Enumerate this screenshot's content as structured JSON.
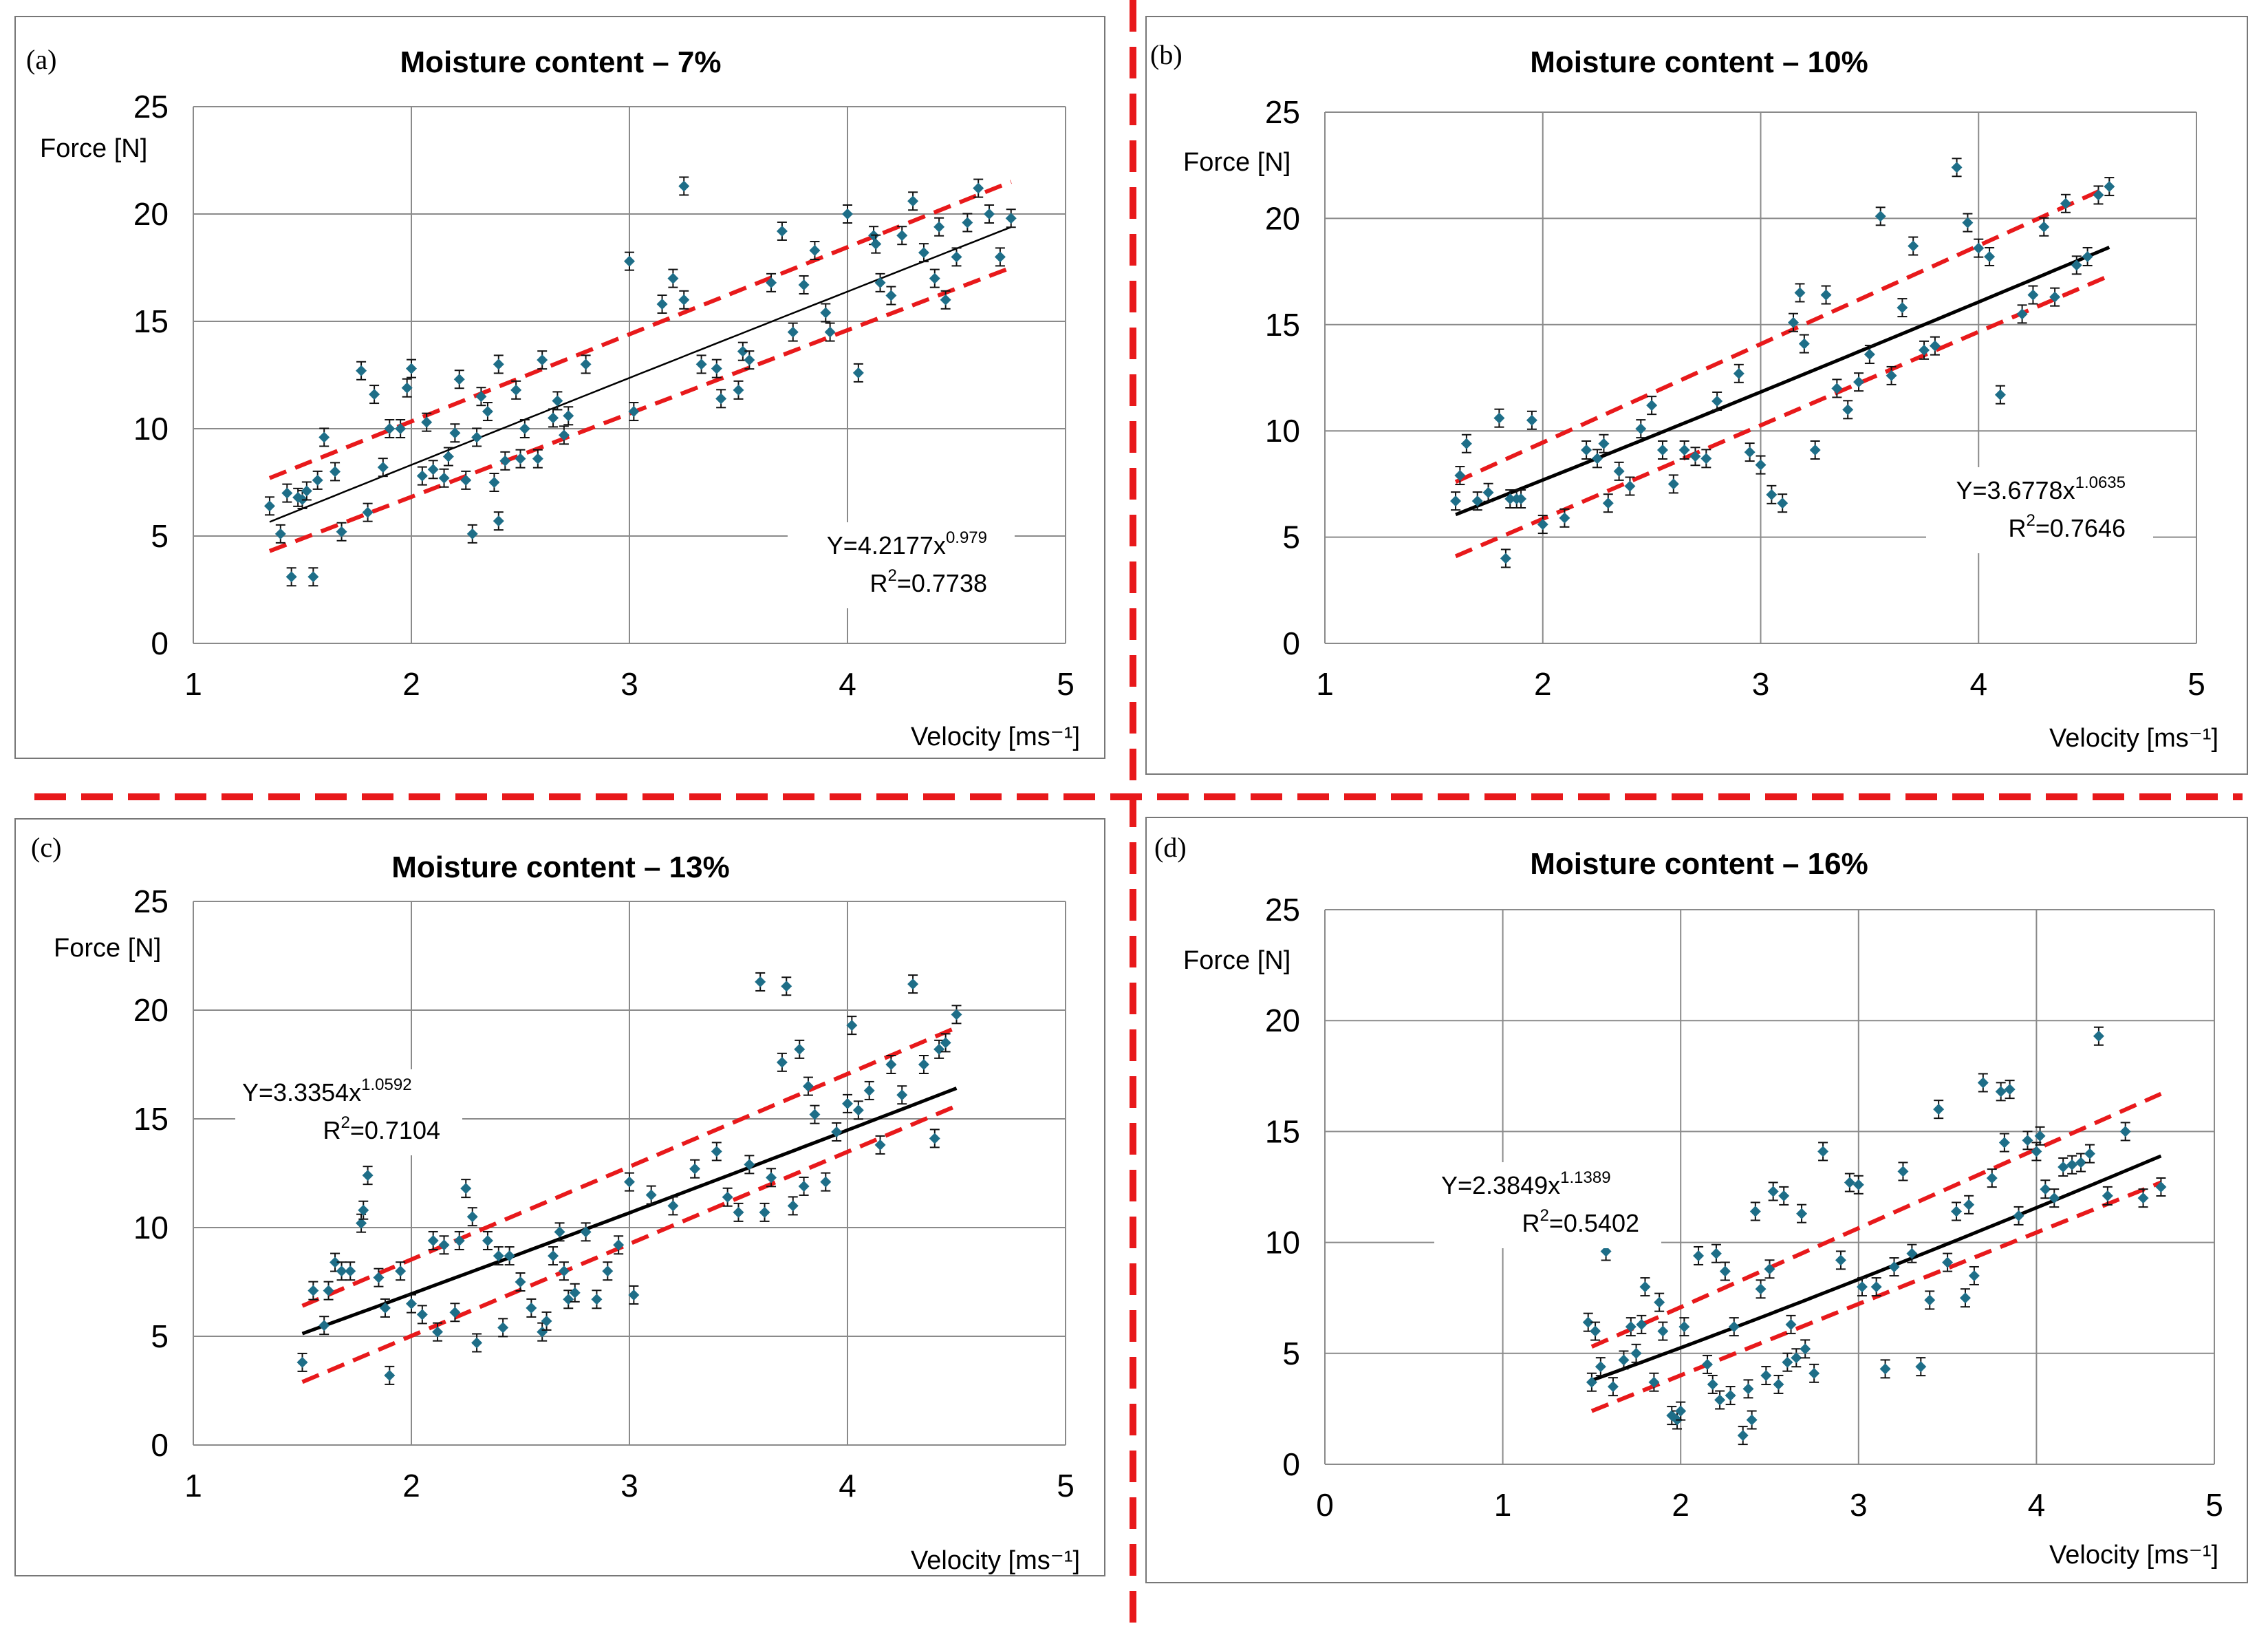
{
  "figure": {
    "accent_color": "#e8191b",
    "marker_color": "#1e6e88",
    "trend_color": "#000000"
  },
  "chart_data": [
    {
      "type": "scatter",
      "panel_label": "(a)",
      "title": "Moisture content – 7%",
      "xlabel": "Velocity [ms⁻¹]",
      "ylabel": "Force [N]",
      "xlim": [
        1,
        5
      ],
      "ylim": [
        0,
        25
      ],
      "xticks": [
        "1",
        "2",
        "3",
        "4",
        "5"
      ],
      "yticks": [
        "0",
        "5",
        "10",
        "15",
        "20",
        "25"
      ],
      "grid": true,
      "equation": {
        "prefix": "Y=4.2177x",
        "exponent": "0.979",
        "r2_prefix": "R",
        "r2_sup": "2",
        "r2_suffix": "=0.7738"
      },
      "fit": {
        "a": 4.2177,
        "b": 0.979,
        "x_range": [
          1.35,
          4.75
        ],
        "style": "thin"
      },
      "bands": {
        "upper": [
          [
            1.35,
            7.7
          ],
          [
            4.75,
            21.5
          ]
        ],
        "lower": [
          [
            1.35,
            4.3
          ],
          [
            4.75,
            17.5
          ]
        ]
      },
      "x": [
        1.35,
        1.4,
        1.43,
        1.45,
        1.48,
        1.5,
        1.52,
        1.55,
        1.57,
        1.6,
        1.65,
        1.68,
        1.77,
        1.8,
        1.83,
        1.87,
        1.9,
        1.95,
        1.98,
        2.0,
        2.05,
        2.07,
        2.1,
        2.15,
        2.17,
        2.2,
        2.22,
        2.25,
        2.28,
        2.3,
        2.32,
        2.35,
        2.38,
        2.4,
        2.4,
        2.43,
        2.48,
        2.5,
        2.52,
        2.58,
        2.6,
        2.65,
        2.67,
        2.7,
        2.72,
        2.8,
        3.0,
        3.02,
        3.15,
        3.2,
        3.25,
        3.25,
        3.33,
        3.4,
        3.42,
        3.5,
        3.52,
        3.55,
        3.65,
        3.7,
        3.75,
        3.8,
        3.85,
        3.9,
        3.92,
        4.0,
        4.05,
        4.12,
        4.13,
        4.15,
        4.2,
        4.25,
        4.3,
        4.35,
        4.4,
        4.42,
        4.45,
        4.5,
        4.55,
        4.6,
        4.65,
        4.7,
        4.75
      ],
      "y": [
        6.4,
        5.1,
        7.0,
        3.1,
        6.8,
        6.7,
        7.1,
        3.1,
        7.6,
        9.6,
        8.0,
        5.2,
        12.7,
        6.1,
        11.6,
        8.2,
        10.0,
        10.0,
        11.9,
        12.8,
        7.8,
        10.3,
        8.1,
        7.7,
        8.7,
        9.8,
        12.3,
        7.6,
        5.1,
        9.6,
        11.5,
        10.8,
        7.5,
        13.0,
        5.7,
        8.5,
        11.8,
        8.6,
        10.0,
        8.6,
        13.2,
        10.5,
        11.3,
        9.7,
        10.6,
        13.0,
        17.8,
        10.8,
        15.8,
        17.0,
        16.0,
        21.3,
        13.0,
        12.8,
        11.4,
        11.8,
        13.6,
        13.2,
        16.8,
        19.2,
        14.5,
        16.7,
        18.3,
        15.4,
        14.5,
        20.0,
        12.6,
        19.0,
        18.6,
        16.8,
        16.2,
        19.0,
        20.6,
        18.2,
        17.0,
        19.4,
        16.0,
        18.0,
        19.6,
        21.2,
        20.0,
        18.0,
        19.8
      ]
    },
    {
      "type": "scatter",
      "panel_label": "(b)",
      "title": "Moisture content – 10%",
      "xlabel": "Velocity [ms⁻¹]",
      "ylabel": "Force [N]",
      "xlim": [
        1,
        5
      ],
      "ylim": [
        0,
        25
      ],
      "xticks": [
        "1",
        "2",
        "3",
        "4",
        "5"
      ],
      "yticks": [
        "0",
        "5",
        "10",
        "15",
        "20",
        "25"
      ],
      "grid": true,
      "equation": {
        "prefix": "Y=3.6778x",
        "exponent": "1.0635",
        "r2_prefix": "R",
        "r2_sup": "2",
        "r2_suffix": "=0.7646"
      },
      "fit": {
        "a": 3.6778,
        "b": 1.0635,
        "x_range": [
          1.6,
          4.6
        ],
        "style": "bold"
      },
      "bands": {
        "upper": [
          [
            1.6,
            7.6
          ],
          [
            4.6,
            21.5
          ]
        ],
        "lower": [
          [
            1.6,
            4.1
          ],
          [
            4.6,
            17.3
          ]
        ]
      },
      "x": [
        1.6,
        1.62,
        1.65,
        1.7,
        1.75,
        1.8,
        1.83,
        1.85,
        1.88,
        1.9,
        1.95,
        2.0,
        2.1,
        2.2,
        2.25,
        2.28,
        2.3,
        2.35,
        2.4,
        2.45,
        2.5,
        2.55,
        2.6,
        2.65,
        2.7,
        2.75,
        2.8,
        2.9,
        2.95,
        3.0,
        3.05,
        3.1,
        3.15,
        3.18,
        3.2,
        3.25,
        3.3,
        3.35,
        3.4,
        3.45,
        3.5,
        3.55,
        3.6,
        3.65,
        3.7,
        3.75,
        3.8,
        3.9,
        3.95,
        4.0,
        4.05,
        4.1,
        4.2,
        4.25,
        4.3,
        4.35,
        4.4,
        4.45,
        4.5,
        4.55,
        4.6
      ],
      "y": [
        6.7,
        7.9,
        9.4,
        6.7,
        7.1,
        10.6,
        4.0,
        6.8,
        6.8,
        6.8,
        10.5,
        5.6,
        5.9,
        9.1,
        8.7,
        9.4,
        6.6,
        8.1,
        7.4,
        10.1,
        11.2,
        9.1,
        7.5,
        9.1,
        8.8,
        8.7,
        11.4,
        12.7,
        9.0,
        8.4,
        7.0,
        6.6,
        15.1,
        16.5,
        14.1,
        9.1,
        16.4,
        12.0,
        11.0,
        12.3,
        13.6,
        20.1,
        12.6,
        15.8,
        18.7,
        13.8,
        14.0,
        22.4,
        19.8,
        18.6,
        18.2,
        11.7,
        15.5,
        16.4,
        19.6,
        16.3,
        20.7,
        17.8,
        18.2,
        21.1,
        21.5
      ]
    },
    {
      "type": "scatter",
      "panel_label": "(c)",
      "title": "Moisture content – 13%",
      "xlabel": "Velocity [ms⁻¹]",
      "ylabel": "Force [N]",
      "xlim": [
        1,
        5
      ],
      "ylim": [
        0,
        25
      ],
      "xticks": [
        "1",
        "2",
        "3",
        "4",
        "5"
      ],
      "yticks": [
        "0",
        "5",
        "10",
        "15",
        "20",
        "25"
      ],
      "grid": true,
      "equation": {
        "prefix": "Y=3.3354x",
        "exponent": "1.0592",
        "r2_prefix": "R",
        "r2_sup": "2",
        "r2_suffix": "=0.7104"
      },
      "fit": {
        "a": 3.3354,
        "b": 1.0592,
        "x_range": [
          1.5,
          4.5
        ],
        "style": "bold"
      },
      "bands": {
        "upper": [
          [
            1.5,
            6.4
          ],
          [
            4.5,
            19.2
          ]
        ],
        "lower": [
          [
            1.5,
            2.9
          ],
          [
            4.5,
            15.6
          ]
        ]
      },
      "x": [
        1.5,
        1.55,
        1.6,
        1.62,
        1.65,
        1.68,
        1.72,
        1.77,
        1.78,
        1.8,
        1.85,
        1.88,
        1.9,
        1.95,
        2.0,
        2.05,
        2.1,
        2.12,
        2.15,
        2.2,
        2.22,
        2.25,
        2.28,
        2.3,
        2.35,
        2.4,
        2.42,
        2.45,
        2.5,
        2.55,
        2.6,
        2.62,
        2.65,
        2.68,
        2.7,
        2.72,
        2.75,
        2.8,
        2.85,
        2.9,
        2.95,
        3.0,
        3.02,
        3.1,
        3.2,
        3.3,
        3.4,
        3.45,
        3.5,
        3.55,
        3.6,
        3.62,
        3.65,
        3.7,
        3.72,
        3.75,
        3.78,
        3.8,
        3.82,
        3.85,
        3.9,
        3.95,
        4.0,
        4.02,
        4.05,
        4.1,
        4.15,
        4.2,
        4.25,
        4.3,
        4.35,
        4.4,
        4.42,
        4.45,
        4.5
      ],
      "y": [
        3.8,
        7.1,
        5.5,
        7.1,
        8.4,
        8.0,
        8.0,
        10.2,
        10.8,
        12.4,
        7.7,
        6.3,
        3.2,
        8.0,
        6.5,
        6.0,
        9.4,
        5.2,
        9.2,
        6.1,
        9.4,
        11.8,
        10.5,
        4.7,
        9.4,
        8.7,
        5.4,
        8.7,
        7.5,
        6.3,
        5.2,
        5.7,
        8.7,
        9.8,
        8.0,
        6.7,
        7.0,
        9.8,
        6.7,
        8.0,
        9.2,
        12.1,
        6.9,
        11.5,
        11.0,
        12.7,
        13.5,
        11.4,
        10.7,
        12.9,
        21.3,
        10.7,
        12.3,
        17.6,
        21.1,
        11.0,
        18.2,
        11.9,
        16.5,
        15.2,
        12.1,
        14.4,
        15.7,
        19.3,
        15.4,
        16.3,
        13.8,
        17.5,
        16.1,
        21.2,
        17.5,
        14.1,
        18.2,
        18.5,
        19.8
      ]
    },
    {
      "type": "scatter",
      "panel_label": "(d)",
      "title": "Moisture content – 16%",
      "xlabel": "Velocity [ms⁻¹]",
      "ylabel": "Force [N]",
      "xlim": [
        0,
        5
      ],
      "ylim": [
        0,
        25
      ],
      "xticks": [
        "0",
        "1",
        "2",
        "3",
        "4",
        "5"
      ],
      "yticks": [
        "0",
        "5",
        "10",
        "15",
        "20",
        "25"
      ],
      "grid": true,
      "equation": {
        "prefix": "Y=2.3849x",
        "exponent": "1.1389",
        "r2_prefix": "R",
        "r2_sup": "2",
        "r2_suffix": "=0.5402"
      },
      "fit": {
        "a": 2.3849,
        "b": 1.1389,
        "x_range": [
          1.5,
          4.7
        ],
        "style": "bold"
      },
      "bands": {
        "upper": [
          [
            1.5,
            5.3
          ],
          [
            4.7,
            16.7
          ]
        ],
        "lower": [
          [
            1.5,
            2.4
          ],
          [
            4.7,
            12.7
          ]
        ]
      },
      "x": [
        1.48,
        1.5,
        1.52,
        1.55,
        1.58,
        1.62,
        1.68,
        1.72,
        1.75,
        1.78,
        1.8,
        1.85,
        1.88,
        1.9,
        1.95,
        1.98,
        2.0,
        2.02,
        2.1,
        2.15,
        2.18,
        2.2,
        2.22,
        2.25,
        2.28,
        2.3,
        2.35,
        2.38,
        2.4,
        2.42,
        2.45,
        2.48,
        2.5,
        2.52,
        2.55,
        2.58,
        2.6,
        2.62,
        2.65,
        2.68,
        2.7,
        2.75,
        2.8,
        2.9,
        2.95,
        3.0,
        3.02,
        3.1,
        3.15,
        3.2,
        3.25,
        3.3,
        3.35,
        3.4,
        3.45,
        3.5,
        3.55,
        3.6,
        3.62,
        3.65,
        3.7,
        3.75,
        3.8,
        3.82,
        3.85,
        3.9,
        3.95,
        4.0,
        4.02,
        4.05,
        4.1,
        4.15,
        4.2,
        4.25,
        4.3,
        4.35,
        4.4,
        4.5,
        4.6,
        4.7
      ],
      "y": [
        6.4,
        3.7,
        6.0,
        4.4,
        9.6,
        3.5,
        4.7,
        6.2,
        5.0,
        6.3,
        8.0,
        3.7,
        7.3,
        6.0,
        2.2,
        2.0,
        2.4,
        6.2,
        9.4,
        4.5,
        3.6,
        9.5,
        2.9,
        8.7,
        3.1,
        6.2,
        1.3,
        3.4,
        2.0,
        11.4,
        7.9,
        4.0,
        8.8,
        12.3,
        3.6,
        12.1,
        4.6,
        6.3,
        4.8,
        11.3,
        5.2,
        4.1,
        14.1,
        9.2,
        12.7,
        12.6,
        8.0,
        8.0,
        4.3,
        8.9,
        13.2,
        9.5,
        4.4,
        7.4,
        16.0,
        9.1,
        11.4,
        7.5,
        11.7,
        8.5,
        17.2,
        12.9,
        16.8,
        14.5,
        16.9,
        11.2,
        14.6,
        14.1,
        14.8,
        12.4,
        12.0,
        13.4,
        13.5,
        13.6,
        14.0,
        19.3,
        12.1,
        15.0,
        12.0,
        12.5
      ]
    }
  ]
}
